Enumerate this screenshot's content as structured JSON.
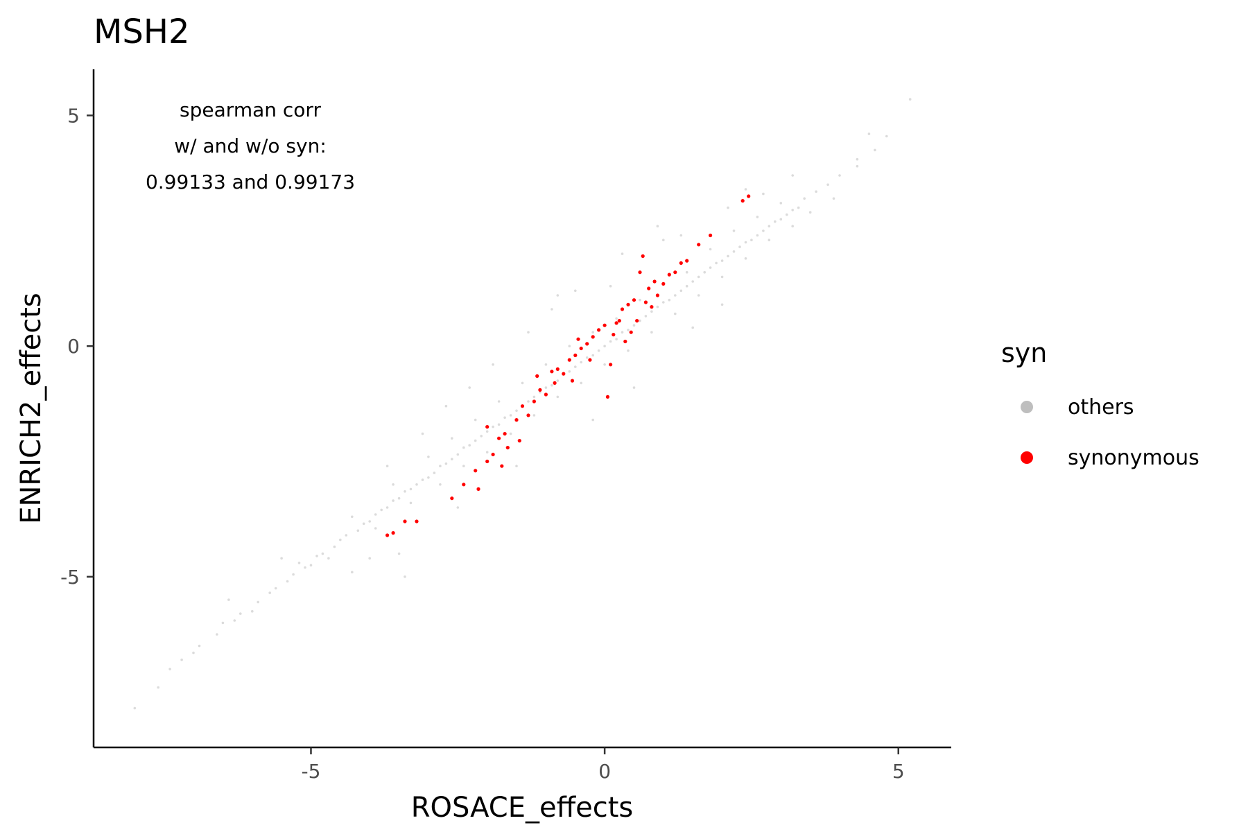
{
  "chart_data": {
    "type": "scatter",
    "title": "MSH2",
    "xlabel": "ROSACE_effects",
    "ylabel": "ENRICH2_effects",
    "xlim": [
      -8.7,
      5.9
    ],
    "ylim": [
      -8.7,
      6.0
    ],
    "x_ticks": [
      {
        "value": -5,
        "label": "-5"
      },
      {
        "value": 0,
        "label": "0"
      },
      {
        "value": 5,
        "label": "5"
      }
    ],
    "y_ticks": [
      {
        "value": 5,
        "label": "5"
      },
      {
        "value": 0,
        "label": "0"
      },
      {
        "value": -5,
        "label": "-5"
      }
    ],
    "grid": false,
    "annotation": [
      "spearman corr",
      "w/ and w/o syn:",
      "0.99133 and 0.99173"
    ],
    "legend": {
      "title": "syn",
      "placement": "right",
      "entries": [
        {
          "label": "others",
          "color": "#bebebe"
        },
        {
          "label": "synonymous",
          "color": "#ff0000"
        }
      ]
    },
    "series": [
      {
        "name": "others",
        "color": "#bebebe",
        "points": [
          [
            -8.0,
            -7.85
          ],
          [
            -7.6,
            -7.4
          ],
          [
            -7.4,
            -7.0
          ],
          [
            -7.2,
            -6.8
          ],
          [
            -7.0,
            -6.65
          ],
          [
            -6.9,
            -6.5
          ],
          [
            -6.6,
            -6.25
          ],
          [
            -6.5,
            -6.0
          ],
          [
            -6.3,
            -5.95
          ],
          [
            -6.2,
            -5.8
          ],
          [
            -6.0,
            -5.75
          ],
          [
            -5.9,
            -5.55
          ],
          [
            -5.7,
            -5.35
          ],
          [
            -5.6,
            -5.25
          ],
          [
            -5.4,
            -5.1
          ],
          [
            -5.3,
            -4.95
          ],
          [
            -5.1,
            -4.8
          ],
          [
            -5.0,
            -4.75
          ],
          [
            -4.9,
            -4.55
          ],
          [
            -4.8,
            -4.5
          ],
          [
            -4.6,
            -4.35
          ],
          [
            -4.5,
            -4.2
          ],
          [
            -4.4,
            -4.1
          ],
          [
            -4.2,
            -4.0
          ],
          [
            -4.1,
            -3.85
          ],
          [
            -4.0,
            -3.8
          ],
          [
            -3.9,
            -3.65
          ],
          [
            -3.8,
            -3.55
          ],
          [
            -3.7,
            -3.5
          ],
          [
            -3.6,
            -3.35
          ],
          [
            -3.5,
            -3.3
          ],
          [
            -3.4,
            -3.15
          ],
          [
            -3.3,
            -3.1
          ],
          [
            -3.2,
            -3.0
          ],
          [
            -3.1,
            -2.9
          ],
          [
            -3.0,
            -2.85
          ],
          [
            -2.9,
            -2.75
          ],
          [
            -2.8,
            -2.6
          ],
          [
            -2.7,
            -2.55
          ],
          [
            -2.6,
            -2.45
          ],
          [
            -2.5,
            -2.35
          ],
          [
            -2.4,
            -2.2
          ],
          [
            -2.3,
            -2.15
          ],
          [
            -2.2,
            -2.05
          ],
          [
            -2.1,
            -1.95
          ],
          [
            -2.0,
            -1.85
          ],
          [
            -1.9,
            -1.75
          ],
          [
            -1.8,
            -1.7
          ],
          [
            -1.7,
            -1.55
          ],
          [
            -1.6,
            -1.5
          ],
          [
            -1.5,
            -1.4
          ],
          [
            -1.4,
            -1.3
          ],
          [
            -1.3,
            -1.2
          ],
          [
            -1.2,
            -1.1
          ],
          [
            -1.1,
            -1.0
          ],
          [
            -1.0,
            -0.9
          ],
          [
            -0.9,
            -0.85
          ],
          [
            -0.8,
            -0.75
          ],
          [
            -0.7,
            -0.6
          ],
          [
            -0.6,
            -0.55
          ],
          [
            -0.5,
            -0.45
          ],
          [
            -0.4,
            -0.35
          ],
          [
            -0.3,
            -0.25
          ],
          [
            -0.2,
            -0.2
          ],
          [
            -0.1,
            -0.1
          ],
          [
            0.0,
            0.0
          ],
          [
            0.1,
            0.1
          ],
          [
            0.2,
            0.15
          ],
          [
            0.3,
            0.3
          ],
          [
            0.4,
            0.35
          ],
          [
            0.5,
            0.45
          ],
          [
            0.6,
            0.55
          ],
          [
            0.7,
            0.65
          ],
          [
            0.8,
            0.75
          ],
          [
            0.9,
            0.85
          ],
          [
            1.0,
            0.95
          ],
          [
            1.1,
            1.0
          ],
          [
            1.2,
            1.1
          ],
          [
            1.3,
            1.2
          ],
          [
            1.4,
            1.3
          ],
          [
            1.5,
            1.4
          ],
          [
            1.6,
            1.5
          ],
          [
            1.7,
            1.6
          ],
          [
            1.8,
            1.7
          ],
          [
            1.9,
            1.8
          ],
          [
            2.0,
            1.85
          ],
          [
            2.1,
            1.95
          ],
          [
            2.2,
            2.05
          ],
          [
            2.3,
            2.15
          ],
          [
            2.4,
            2.25
          ],
          [
            2.5,
            2.3
          ],
          [
            2.6,
            2.4
          ],
          [
            2.7,
            2.5
          ],
          [
            2.8,
            2.6
          ],
          [
            2.9,
            2.7
          ],
          [
            3.0,
            2.75
          ],
          [
            3.1,
            2.85
          ],
          [
            3.2,
            2.95
          ],
          [
            3.3,
            3.0
          ],
          [
            3.4,
            3.2
          ],
          [
            3.6,
            3.35
          ],
          [
            3.8,
            3.5
          ],
          [
            4.0,
            3.7
          ],
          [
            4.3,
            4.05
          ],
          [
            4.6,
            4.25
          ],
          [
            4.8,
            4.55
          ],
          [
            5.2,
            5.35
          ],
          [
            -5.2,
            -4.7
          ],
          [
            -4.7,
            -4.6
          ],
          [
            -4.3,
            -3.7
          ],
          [
            -3.9,
            -3.95
          ],
          [
            -3.6,
            -3.0
          ],
          [
            -3.3,
            -3.4
          ],
          [
            -3.0,
            -2.4
          ],
          [
            -2.8,
            -3.0
          ],
          [
            -2.6,
            -2.0
          ],
          [
            -2.4,
            -2.6
          ],
          [
            -2.2,
            -1.6
          ],
          [
            -2.0,
            -2.3
          ],
          [
            -1.8,
            -1.2
          ],
          [
            -1.6,
            -1.9
          ],
          [
            -1.4,
            -0.8
          ],
          [
            -1.2,
            -1.5
          ],
          [
            -1.0,
            -0.4
          ],
          [
            -0.8,
            -1.1
          ],
          [
            -0.6,
            0.0
          ],
          [
            -0.4,
            -0.8
          ],
          [
            -0.2,
            0.3
          ],
          [
            0.0,
            -0.4
          ],
          [
            0.2,
            0.6
          ],
          [
            0.4,
            -0.1
          ],
          [
            0.6,
            1.0
          ],
          [
            0.8,
            0.3
          ],
          [
            1.0,
            1.35
          ],
          [
            1.2,
            0.7
          ],
          [
            1.4,
            1.6
          ],
          [
            1.6,
            1.1
          ],
          [
            1.8,
            2.1
          ],
          [
            2.0,
            1.5
          ],
          [
            2.2,
            2.5
          ],
          [
            2.4,
            1.9
          ],
          [
            2.6,
            2.8
          ],
          [
            2.8,
            2.3
          ],
          [
            3.0,
            3.1
          ],
          [
            3.2,
            2.6
          ],
          [
            -1.9,
            -0.4
          ],
          [
            -0.8,
            1.1
          ],
          [
            0.3,
            2.0
          ],
          [
            1.0,
            2.3
          ],
          [
            -2.7,
            -1.3
          ],
          [
            -1.3,
            0.3
          ],
          [
            0.9,
            2.6
          ],
          [
            -0.2,
            -1.6
          ],
          [
            0.5,
            -0.9
          ],
          [
            -2.5,
            -3.5
          ],
          [
            -4.0,
            -4.6
          ],
          [
            -3.5,
            -4.5
          ],
          [
            -1.5,
            -2.6
          ],
          [
            2.0,
            0.9
          ],
          [
            1.5,
            0.4
          ],
          [
            -0.9,
            0.8
          ],
          [
            -0.5,
            1.2
          ],
          [
            -5.5,
            -4.6
          ],
          [
            -6.4,
            -5.5
          ],
          [
            -4.3,
            -4.9
          ],
          [
            -3.4,
            -5.0
          ],
          [
            -3.7,
            -2.6
          ],
          [
            -3.1,
            -1.9
          ],
          [
            -2.3,
            -0.9
          ],
          [
            0.1,
            1.3
          ],
          [
            1.3,
            2.4
          ],
          [
            2.1,
            3.0
          ],
          [
            2.7,
            3.3
          ],
          [
            3.5,
            2.9
          ],
          [
            3.9,
            3.2
          ],
          [
            4.3,
            3.9
          ],
          [
            4.5,
            4.6
          ],
          [
            3.2,
            3.7
          ],
          [
            2.4,
            3.4
          ]
        ]
      },
      {
        "name": "synonymous",
        "color": "#ff0000",
        "points": [
          [
            -3.7,
            -4.1
          ],
          [
            -3.6,
            -4.05
          ],
          [
            -3.2,
            -3.8
          ],
          [
            -2.6,
            -3.3
          ],
          [
            -2.4,
            -3.0
          ],
          [
            -2.2,
            -2.7
          ],
          [
            -2.15,
            -3.1
          ],
          [
            -2.0,
            -2.5
          ],
          [
            -1.9,
            -2.35
          ],
          [
            -1.8,
            -2.0
          ],
          [
            -1.7,
            -1.9
          ],
          [
            -1.65,
            -2.2
          ],
          [
            -1.5,
            -1.6
          ],
          [
            -1.45,
            -2.05
          ],
          [
            -1.4,
            -1.3
          ],
          [
            -1.3,
            -1.5
          ],
          [
            -1.2,
            -1.2
          ],
          [
            -1.15,
            -0.65
          ],
          [
            -1.1,
            -0.95
          ],
          [
            -1.0,
            -1.05
          ],
          [
            -0.9,
            -0.55
          ],
          [
            -0.85,
            -0.8
          ],
          [
            -0.8,
            -0.5
          ],
          [
            -0.7,
            -0.6
          ],
          [
            -0.6,
            -0.3
          ],
          [
            -0.55,
            -0.75
          ],
          [
            -0.5,
            -0.2
          ],
          [
            -0.4,
            -0.05
          ],
          [
            -0.3,
            0.05
          ],
          [
            -0.25,
            -0.3
          ],
          [
            -0.2,
            0.2
          ],
          [
            -0.1,
            0.35
          ],
          [
            0.0,
            0.45
          ],
          [
            0.05,
            -1.1
          ],
          [
            0.1,
            -0.4
          ],
          [
            0.15,
            0.25
          ],
          [
            0.2,
            0.5
          ],
          [
            0.3,
            0.8
          ],
          [
            0.35,
            0.1
          ],
          [
            0.4,
            0.9
          ],
          [
            0.45,
            0.3
          ],
          [
            0.5,
            1.0
          ],
          [
            0.55,
            0.55
          ],
          [
            0.6,
            1.6
          ],
          [
            0.65,
            1.95
          ],
          [
            0.7,
            0.95
          ],
          [
            0.75,
            1.25
          ],
          [
            0.8,
            0.85
          ],
          [
            0.85,
            1.4
          ],
          [
            0.9,
            1.1
          ],
          [
            1.0,
            1.35
          ],
          [
            1.1,
            1.55
          ],
          [
            1.2,
            1.6
          ],
          [
            1.3,
            1.8
          ],
          [
            1.4,
            1.85
          ],
          [
            1.6,
            2.2
          ],
          [
            1.8,
            2.4
          ],
          [
            2.35,
            3.15
          ],
          [
            2.45,
            3.25
          ],
          [
            -3.4,
            -3.8
          ],
          [
            -2.0,
            -1.75
          ],
          [
            -1.75,
            -2.6
          ],
          [
            -0.45,
            0.15
          ],
          [
            0.25,
            0.55
          ]
        ]
      }
    ]
  }
}
